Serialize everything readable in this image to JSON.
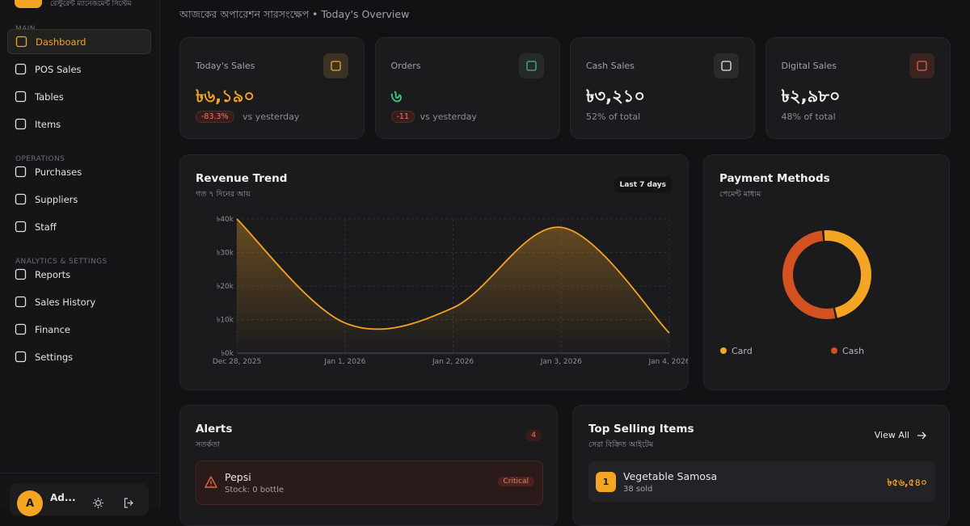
{
  "brand_subtitle": "রেস্টুরেন্ট ম্যানেজমেন্ট সিস্টেম",
  "sidebar": {
    "sections": [
      {
        "heading": "MAIN",
        "items": [
          "Dashboard",
          "POS Sales",
          "Tables",
          "Items"
        ]
      },
      {
        "heading": "OPERATIONS",
        "items": [
          "Purchases",
          "Suppliers",
          "Staff"
        ]
      },
      {
        "heading": "ANALYTICS & SETTINGS",
        "items": [
          "Reports",
          "Sales History",
          "Finance",
          "Settings"
        ]
      }
    ],
    "user": {
      "avatar": "A",
      "name": "Ad..."
    }
  },
  "header": {
    "subtitle": "আজকের অপারেশন সারসংক্ষেপ • Today's Overview"
  },
  "stats": [
    {
      "label": "Today's Sales",
      "value": "৳৬,১৯০",
      "badge": "-83.3%",
      "note": "vs yesterday"
    },
    {
      "label": "Orders",
      "value": "৬",
      "badge": "-11",
      "note": "vs yesterday"
    },
    {
      "label": "Cash Sales",
      "value": "৳৩,২১০",
      "note": "52% of total"
    },
    {
      "label": "Digital Sales",
      "value": "৳২,৯৮০",
      "note": "48% of total"
    }
  ],
  "chart_data": [
    {
      "type": "line",
      "title": "Revenue Trend",
      "subtitle": "গত ৭ দিনের আয়",
      "range_button": "Last 7 days",
      "categories": [
        "Dec 28, 2025",
        "Jan 1, 2026",
        "Jan 2, 2026",
        "Jan 3, 2026",
        "Jan 4, 2026"
      ],
      "series": [
        {
          "color": "#f5a524",
          "values": [
            40,
            9,
            13.5,
            37.5,
            6
          ]
        }
      ],
      "ylim": [
        0,
        40
      ],
      "yticks": [
        {
          "value": 0,
          "label": "৳0k"
        },
        {
          "value": 10,
          "label": "৳10k"
        },
        {
          "value": 20,
          "label": "৳20k"
        },
        {
          "value": 30,
          "label": "৳30k"
        },
        {
          "value": 40,
          "label": "৳40k"
        }
      ],
      "grid": true
    },
    {
      "type": "pie",
      "title": "Payment Methods",
      "subtitle": "পেমেন্ট মাধ্যম",
      "categories": [
        "Card",
        "Cash"
      ],
      "values": [
        48,
        52
      ],
      "colors": [
        "#f5a524",
        "#d4521f"
      ]
    }
  ],
  "alerts": {
    "title": "Alerts",
    "subtitle": "সতর্কতা",
    "count": "4",
    "items": [
      {
        "name": "Pepsi",
        "detail": "Stock: 0 bottle",
        "level": "Critical"
      }
    ]
  },
  "top_selling": {
    "title": "Top Selling Items",
    "subtitle": "সেরা বিক্রিত আইটেম",
    "action": "View All",
    "items": [
      {
        "rank": "1",
        "name": "Vegetable Samosa",
        "sold": "38 sold",
        "amount": "৳৫৬,৫৪০"
      }
    ]
  }
}
